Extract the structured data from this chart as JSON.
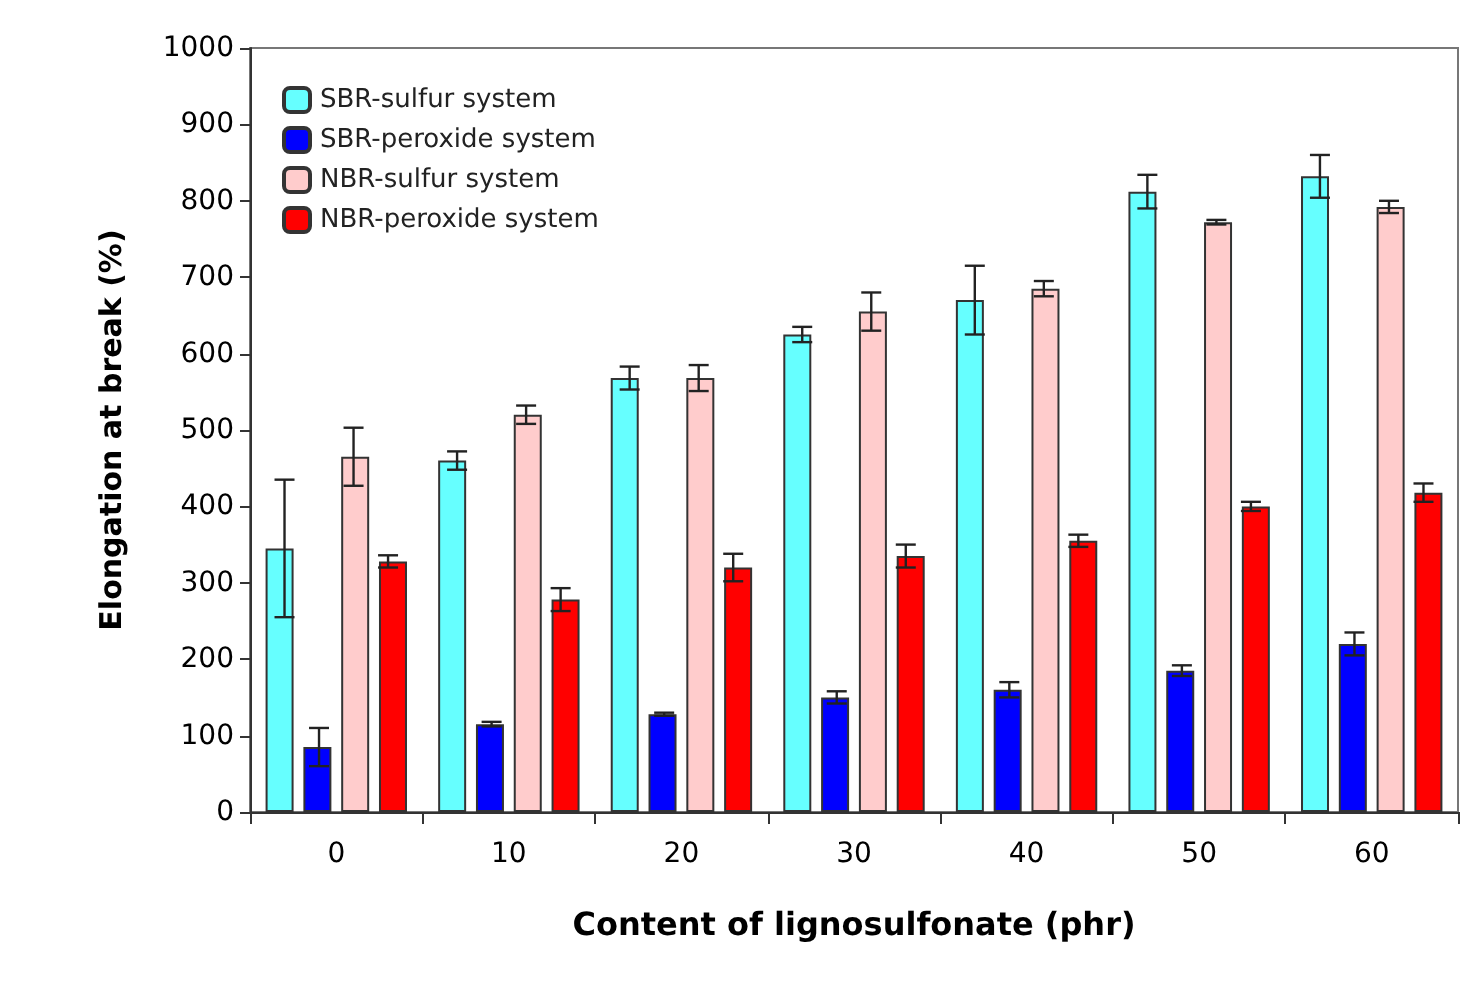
{
  "chart_data": {
    "type": "bar",
    "xlabel": "Content of lignosulfonate (phr)",
    "ylabel": "Elongation at break (%)",
    "categories": [
      "0",
      "10",
      "20",
      "30",
      "40",
      "50",
      "60"
    ],
    "series": [
      {
        "name": "SBR-sulfur system",
        "color": "#66ffff",
        "values": [
          345,
          460,
          568,
          625,
          670,
          812,
          832
        ],
        "errors": [
          90,
          12,
          15,
          10,
          45,
          22,
          28
        ]
      },
      {
        "name": "SBR-peroxide system",
        "color": "#0000ff",
        "values": [
          85,
          115,
          128,
          150,
          160,
          185,
          220
        ],
        "errors": [
          25,
          3,
          2,
          8,
          10,
          7,
          15
        ]
      },
      {
        "name": "NBR-sulfur system",
        "color": "#ffcccc",
        "values": [
          465,
          520,
          568,
          655,
          685,
          772,
          792
        ],
        "errors": [
          38,
          12,
          17,
          25,
          10,
          3,
          8
        ]
      },
      {
        "name": "NBR-peroxide system",
        "color": "#ff0000",
        "values": [
          328,
          278,
          320,
          335,
          355,
          400,
          418
        ],
        "errors": [
          8,
          15,
          18,
          15,
          8,
          6,
          12
        ]
      }
    ],
    "ylim": [
      0,
      1000
    ],
    "yticks": [
      0,
      100,
      200,
      300,
      400,
      500,
      600,
      700,
      800,
      900,
      1000
    ],
    "grid": false,
    "legend": "top left"
  }
}
